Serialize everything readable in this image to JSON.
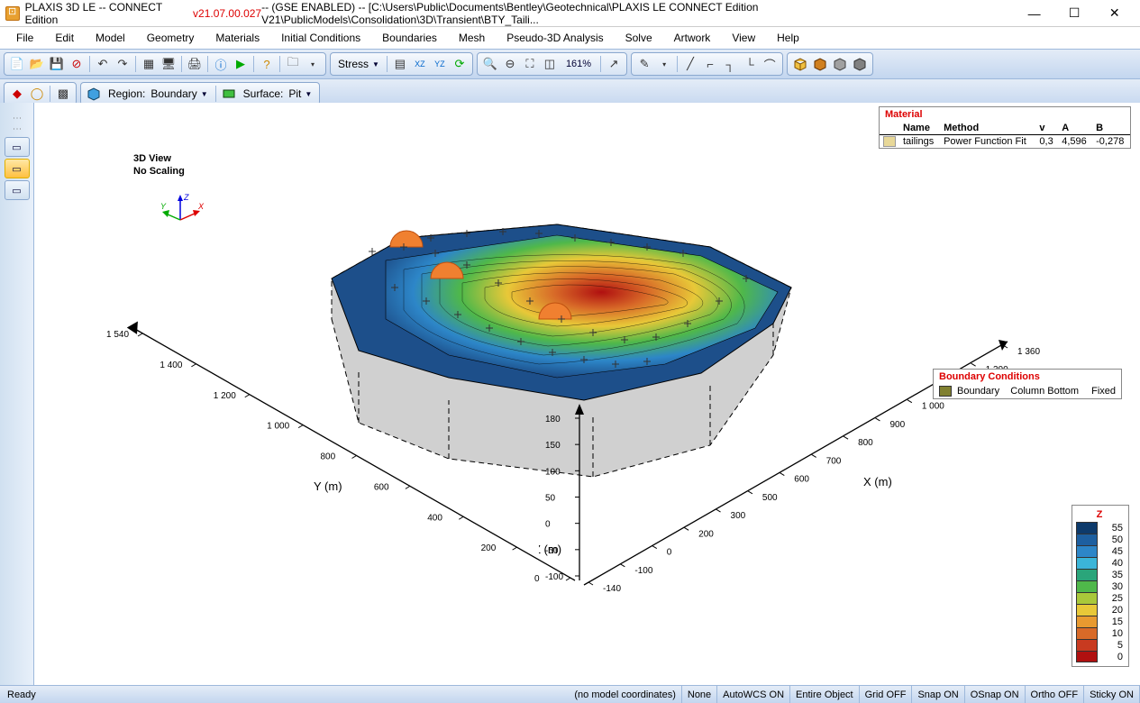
{
  "title": {
    "app": "PLAXIS 3D LE -- CONNECT Edition ",
    "version": "v21.07.00.027",
    "suffix": " -- (GSE ENABLED) -- [C:\\Users\\Public\\Documents\\Bentley\\Geotechnical\\PLAXIS LE CONNECT Edition V21\\PublicModels\\Consolidation\\3D\\Transient\\BTY_Taili..."
  },
  "menu": [
    "File",
    "Edit",
    "Model",
    "Geometry",
    "Materials",
    "Initial Conditions",
    "Boundaries",
    "Mesh",
    "Pseudo-3D Analysis",
    "Solve",
    "Artwork",
    "View",
    "Help"
  ],
  "toolbar1": {
    "stress_label": "Stress",
    "zoom_pct": "161%"
  },
  "toolbar2": {
    "region_label": "Region:",
    "region_value": "Boundary",
    "surface_label": "Surface:",
    "surface_value": "Pit"
  },
  "view": {
    "title": "3D View",
    "scaling": "No Scaling"
  },
  "axes": {
    "y": {
      "label": "Y (m)",
      "ticks": [
        "1 540",
        "1 400",
        "1 200",
        "1 000",
        "800",
        "600",
        "400",
        "200",
        "0"
      ]
    },
    "x": {
      "label": "X (m)",
      "ticks": [
        "1 360",
        "1 300",
        "1 200",
        "1 000",
        "900",
        "800",
        "700",
        "600",
        "500",
        "300",
        "200",
        "0",
        "-100",
        "-140"
      ]
    },
    "z": {
      "label": "Z (m)",
      "ticks": [
        "180",
        "150",
        "100",
        "50",
        "0",
        "-50",
        "-100"
      ]
    }
  },
  "material": {
    "header": "Material",
    "cols": [
      "Name",
      "Method",
      "v",
      "A",
      "B"
    ],
    "rows": [
      {
        "swatch": "#e8d898",
        "Name": "tailings",
        "Method": "Power Function Fit",
        "v": "0,3",
        "A": "4,596",
        "B": "-0,278"
      }
    ]
  },
  "bc": {
    "header": "Boundary Conditions",
    "rows": [
      {
        "swatch": "#808030",
        "name": "Boundary",
        "col": "Column Bottom",
        "type": "Fixed"
      }
    ]
  },
  "z_legend": {
    "header": "Z",
    "steps": [
      {
        "c": "#0d3a6b",
        "v": "55"
      },
      {
        "c": "#1d5fa0",
        "v": "50"
      },
      {
        "c": "#2d86c8",
        "v": "45"
      },
      {
        "c": "#3bb5d8",
        "v": "40"
      },
      {
        "c": "#2aa57a",
        "v": "35"
      },
      {
        "c": "#4fb84a",
        "v": "30"
      },
      {
        "c": "#a9c83a",
        "v": "25"
      },
      {
        "c": "#e8c838",
        "v": "20"
      },
      {
        "c": "#e89a30",
        "v": "15"
      },
      {
        "c": "#d86a28",
        "v": "10"
      },
      {
        "c": "#c83a20",
        "v": "5"
      },
      {
        "c": "#b01010",
        "v": "0"
      }
    ]
  },
  "status": {
    "ready": "Ready",
    "coords": "(no model coordinates)",
    "cells": [
      "None",
      "AutoWCS ON",
      "Entire Object",
      "Grid OFF",
      "Snap ON",
      "OSnap ON",
      "Ortho OFF",
      "Sticky ON"
    ]
  },
  "terrain": {
    "colors": {
      "water": "#1d4f8a",
      "side": "#c8c8c8",
      "outline": "#000",
      "marker": "#f08030"
    }
  }
}
